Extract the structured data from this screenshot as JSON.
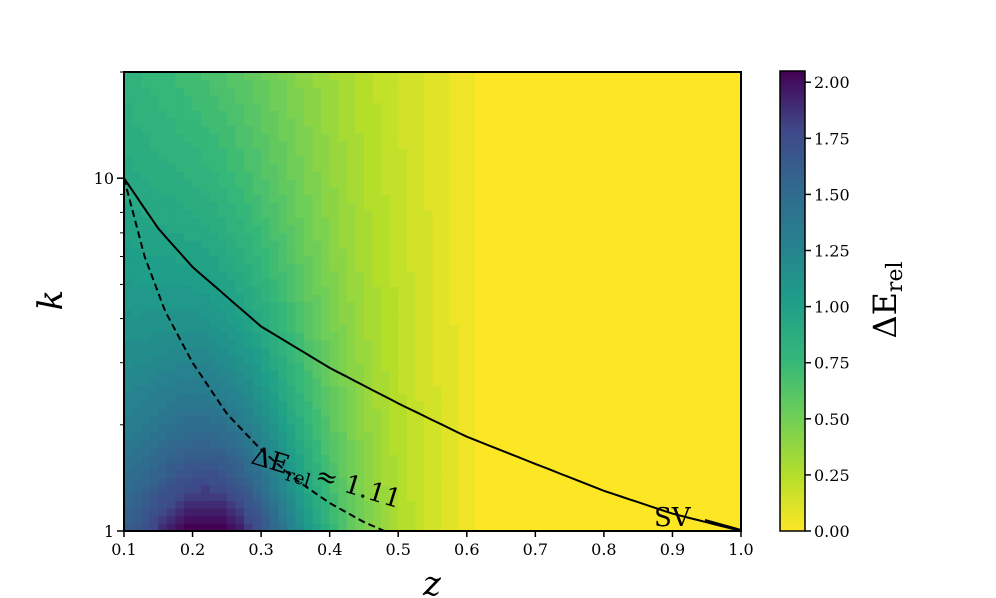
{
  "chart_data": {
    "type": "heatmap",
    "title": "",
    "xlabel": "z",
    "ylabel": "k",
    "x_range": [
      0.1,
      1.0
    ],
    "y_range": [
      1,
      20
    ],
    "y_scale": "log",
    "x_ticks": [
      "0.1",
      "0.2",
      "0.3",
      "0.4",
      "0.5",
      "0.6",
      "0.7",
      "0.8",
      "0.9",
      "1.0"
    ],
    "y_ticks": [
      "1",
      "10"
    ],
    "colorbar": {
      "label": "ΔE",
      "label_subscript": "rel",
      "colormap": "viridis_r",
      "range": [
        0,
        2.05
      ],
      "ticks": [
        "0.00",
        "0.25",
        "0.50",
        "0.75",
        "1.00",
        "1.25",
        "1.50",
        "1.75",
        "2.00"
      ]
    },
    "grid": false,
    "curves": [
      {
        "label": "SV",
        "style": "solid",
        "points": [
          [
            0.1,
            10
          ],
          [
            0.15,
            7.2
          ],
          [
            0.2,
            5.6
          ],
          [
            0.3,
            3.8
          ],
          [
            0.4,
            2.9
          ],
          [
            0.5,
            2.3
          ],
          [
            0.6,
            1.85
          ],
          [
            0.7,
            1.55
          ],
          [
            0.8,
            1.3
          ],
          [
            0.9,
            1.12
          ],
          [
            1.0,
            1.0
          ]
        ]
      },
      {
        "label": "ΔE",
        "label_subscript": "rel",
        "label_suffix": "≈ 1.11",
        "style": "dashed",
        "points": [
          [
            0.1,
            10
          ],
          [
            0.13,
            6.0
          ],
          [
            0.16,
            4.2
          ],
          [
            0.2,
            3.0
          ],
          [
            0.25,
            2.15
          ],
          [
            0.3,
            1.7
          ],
          [
            0.35,
            1.4
          ],
          [
            0.4,
            1.2
          ],
          [
            0.45,
            1.06
          ],
          [
            0.48,
            1.0
          ]
        ]
      }
    ]
  }
}
